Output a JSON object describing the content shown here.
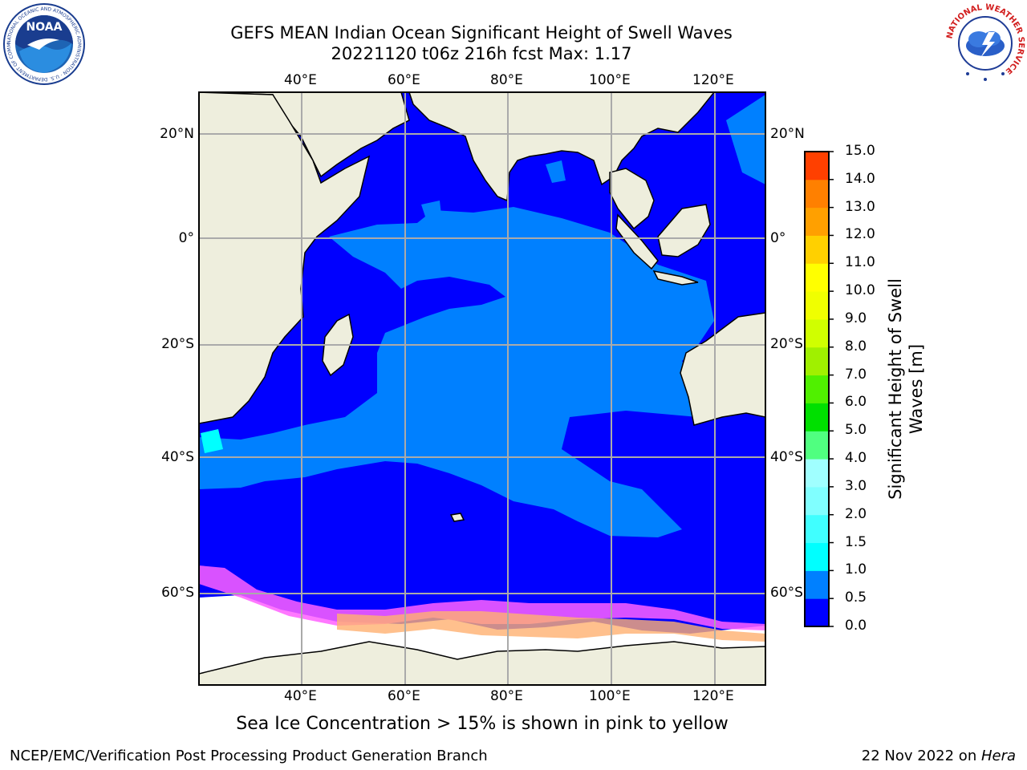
{
  "header": {
    "title_line1": "GEFS MEAN Indian Ocean Significant Height of Swell Waves",
    "title_line2": "20221120 t06z 216h fcst   Max: 1.17"
  },
  "logos": {
    "noaa_text": "NOAA",
    "noaa_ring": "NATIONAL OCEANIC AND ATMOSPHERIC ADMINISTRATION · U.S. DEPARTMENT OF COMMERCE",
    "nws_ring": "NATIONAL WEATHER SERVICE"
  },
  "map": {
    "lon_labels": [
      "40°E",
      "60°E",
      "80°E",
      "100°E",
      "120°E"
    ],
    "lat_labels": [
      "20°N",
      "0°",
      "20°S",
      "40°S",
      "60°S"
    ],
    "colors": {
      "ocean_low": "#0000ff",
      "ocean_mid": "#0080ff",
      "land": "#eeeedd",
      "ice": "#ffffff",
      "grid": "#aaaaaa"
    }
  },
  "colorbar": {
    "label_line1": "Significant Height of Swell",
    "label_line2": "Waves [m]",
    "ticks": [
      "0.0",
      "0.5",
      "1.0",
      "1.5",
      "2.0",
      "3.0",
      "4.0",
      "5.0",
      "6.0",
      "7.0",
      "8.0",
      "9.0",
      "10.0",
      "11.0",
      "12.0",
      "13.0",
      "14.0",
      "15.0"
    ],
    "colors": [
      "#0000ff",
      "#0080ff",
      "#00ffff",
      "#40ffff",
      "#80ffff",
      "#a0ffff",
      "#50ff80",
      "#00e000",
      "#50f000",
      "#a0f000",
      "#d0ff00",
      "#f0ff00",
      "#ffff00",
      "#ffd000",
      "#ffa000",
      "#ff8000",
      "#ff4000",
      "#ff0000"
    ]
  },
  "caption": "Sea Ice Concentration > 15% is shown in pink to yellow",
  "footer": {
    "left": "NCEP/EMC/Verification Post Processing Product Generation Branch",
    "right_date": "22 Nov 2022 on ",
    "right_host": "Hera"
  }
}
